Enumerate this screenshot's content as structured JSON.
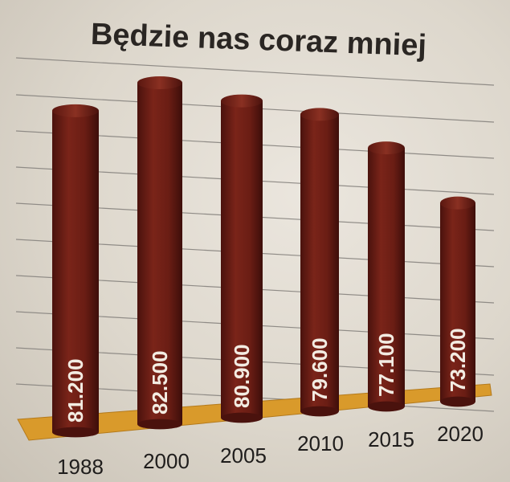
{
  "chart_data": {
    "type": "bar",
    "title": "Będzie nas coraz mniej",
    "xlabel": "",
    "ylabel": "",
    "categories": [
      "1988",
      "2000",
      "2005",
      "2010",
      "2015",
      "2020"
    ],
    "values": [
      81200,
      82500,
      80900,
      79600,
      77100,
      73200
    ],
    "data_labels": [
      "81.200",
      "82.500",
      "80.900",
      "79.600",
      "77.100",
      "73.200"
    ],
    "grid": true,
    "legend": "none",
    "colors": {
      "bar": "#6e1f17",
      "bar_highlight": "#8c2e22",
      "base": "#d99a2b",
      "background": "#e4dfd6",
      "gridline": "#8f8b86"
    }
  }
}
